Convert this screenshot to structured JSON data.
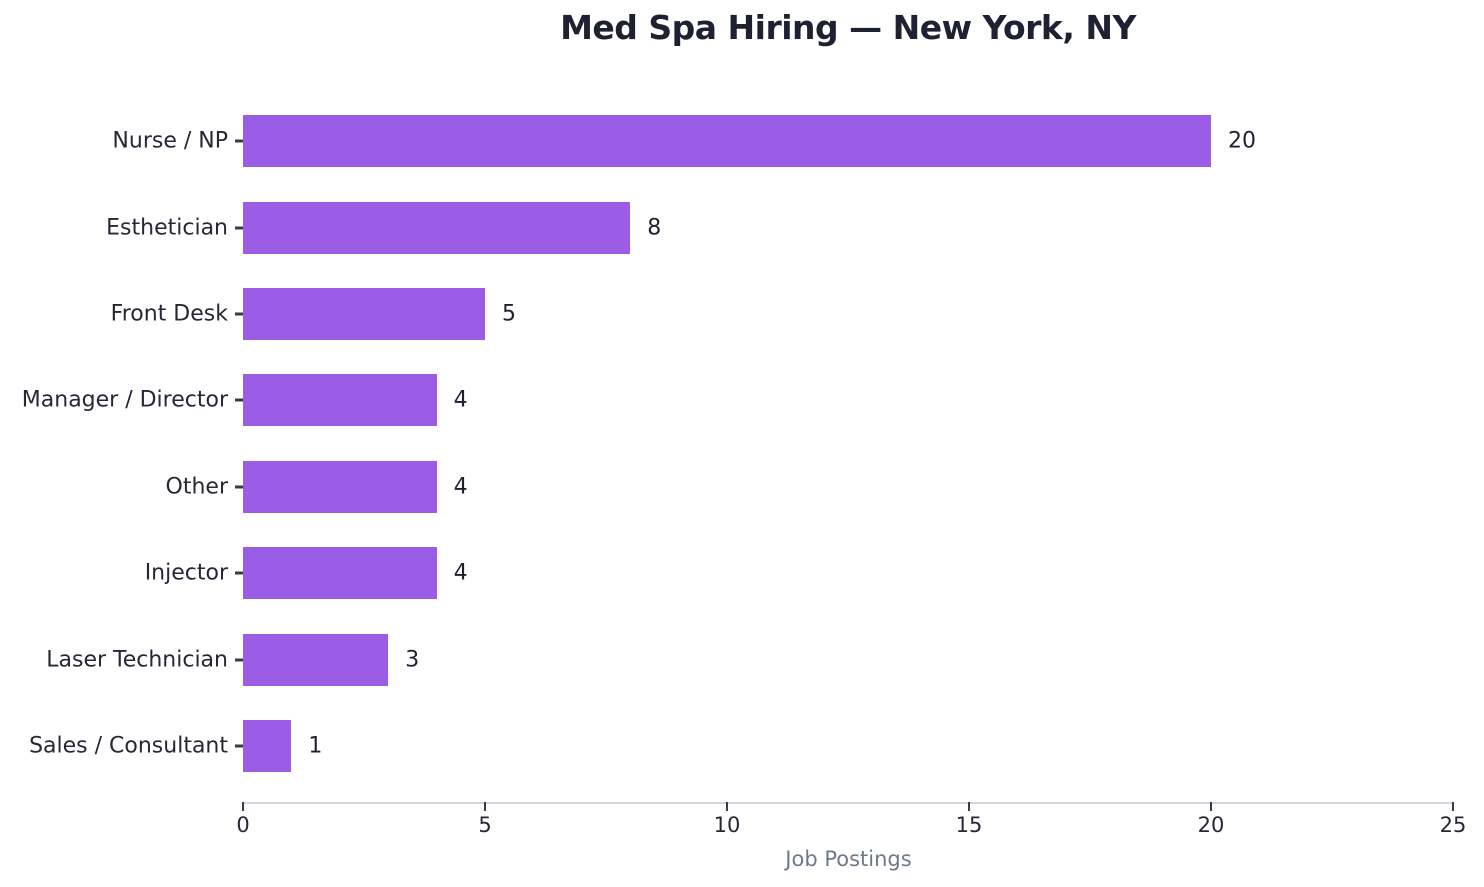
{
  "chart_data": {
    "type": "bar",
    "orientation": "horizontal",
    "title": "Med Spa Hiring — New York, NY",
    "xlabel": "Job Postings",
    "ylabel": "",
    "categories": [
      "Nurse / NP",
      "Esthetician",
      "Front Desk",
      "Manager / Director",
      "Other",
      "Injector",
      "Laser Technician",
      "Sales / Consultant"
    ],
    "values": [
      20,
      8,
      5,
      4,
      4,
      4,
      3,
      1
    ],
    "xlim": [
      0,
      25
    ],
    "xticks": [
      0,
      5,
      10,
      15,
      20,
      25
    ],
    "grid": false,
    "legend": false,
    "bar_value_labels_shown": true
  },
  "colors": {
    "background": "#ffffff",
    "bar": "#9b5de5",
    "title": "#1e2132",
    "category_label": "#262836",
    "value_label": "#1e2132",
    "tick_label": "#262836",
    "axis_label": "#6e7a8a",
    "axis_line": "#d6d6de",
    "tick_mark": "#3a3a4a"
  }
}
